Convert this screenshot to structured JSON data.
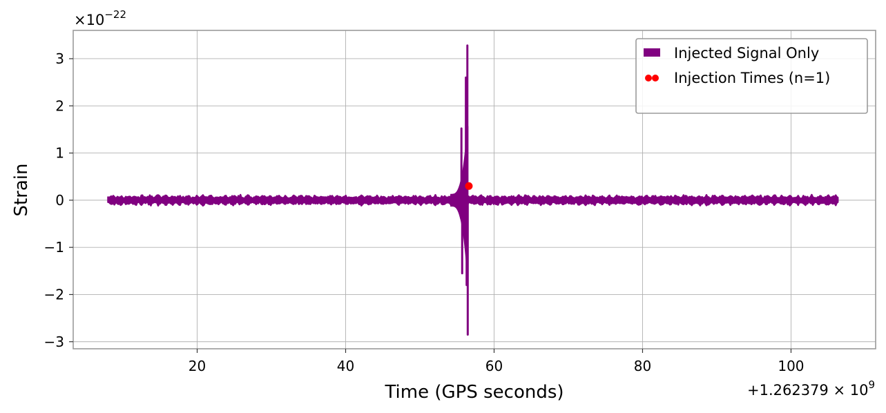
{
  "chart_data": {
    "type": "line",
    "title": "",
    "xlabel": "Time (GPS seconds)",
    "ylabel": "Strain",
    "y_multiplier": {
      "prefix": "×10",
      "exponent": "−22"
    },
    "x_offset": {
      "prefix": "+1.262379 × 10",
      "exponent": "9"
    },
    "xlim": [
      3.3,
      111.4
    ],
    "ylim": [
      -3.15,
      3.6
    ],
    "x_ticks": [
      20,
      40,
      60,
      80,
      100
    ],
    "x_tick_labels": [
      "20",
      "40",
      "60",
      "80",
      "100"
    ],
    "y_ticks": [
      -3,
      -2,
      -1,
      0,
      1,
      2,
      3
    ],
    "y_tick_labels": [
      "−3",
      "−2",
      "−1",
      "0",
      "1",
      "2",
      "3"
    ],
    "grid": true,
    "legend_position": "top-right",
    "series": [
      {
        "name": "Injected Signal Only",
        "kind": "line",
        "color": "#800080",
        "x_range": [
          8.0,
          106.3
        ],
        "background_amplitude": 0.12,
        "peaks": [
          {
            "x": 55.6,
            "y": 1.52
          },
          {
            "x": 55.7,
            "y": -1.55
          },
          {
            "x": 56.2,
            "y": 2.6
          },
          {
            "x": 56.3,
            "y": -1.8
          },
          {
            "x": 56.4,
            "y": 3.28
          },
          {
            "x": 56.45,
            "y": -2.85
          }
        ]
      },
      {
        "name": "Injection Times (n=1)",
        "kind": "scatter",
        "color": "#ff0000",
        "points": [
          {
            "x": 56.6,
            "y": 0.3
          }
        ]
      }
    ]
  }
}
